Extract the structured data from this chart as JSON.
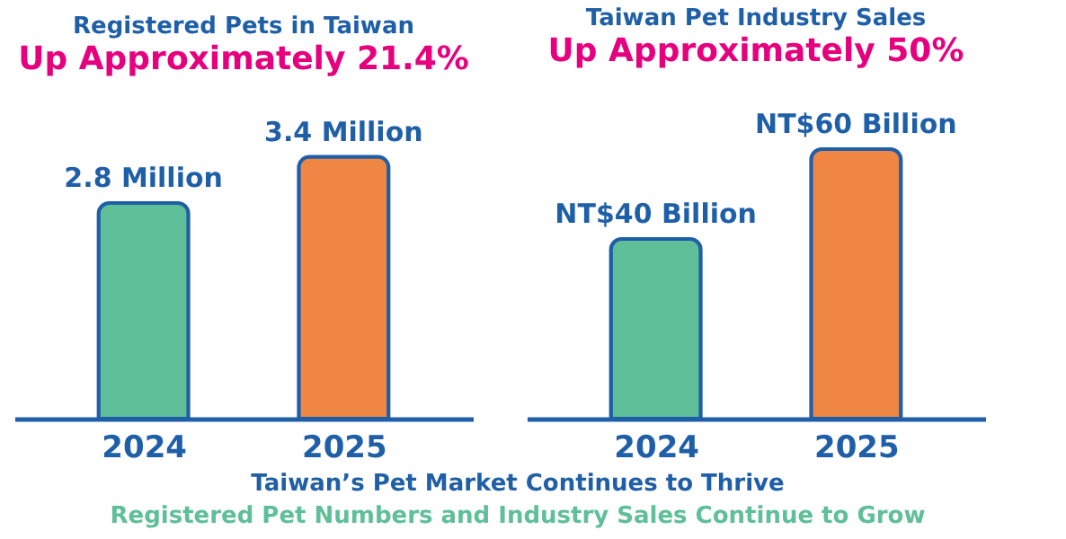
{
  "chart_data": [
    {
      "type": "bar",
      "title": "Registered Pets in Taiwan",
      "subtitle": "Up Approximately 21.4%",
      "categories": [
        "2024",
        "2025"
      ],
      "values": [
        2.8,
        3.4
      ],
      "colors": [
        "#5fbf98",
        "#f08643"
      ],
      "value_labels": [
        "2.8 Million",
        "3.4 Million"
      ],
      "tick_labels": "x"
    },
    {
      "type": "bar",
      "title": "Taiwan Pet Industry Sales",
      "subtitle": "Up Approximately 50%",
      "categories": [
        "2024",
        "2025"
      ],
      "values": [
        40,
        60
      ],
      "colors": [
        "#5fbf98",
        "#f08643"
      ],
      "value_labels": [
        "NT$40 Billion",
        "NT$60 Billion"
      ],
      "tick_labels": "x"
    },
    {
      "type": "other",
      "annotations": [
        "Taiwan’s Pet Market Continues to Thrive",
        "Registered Pet Numbers and Industry Sales Continue to Grow"
      ]
    }
  ]
}
